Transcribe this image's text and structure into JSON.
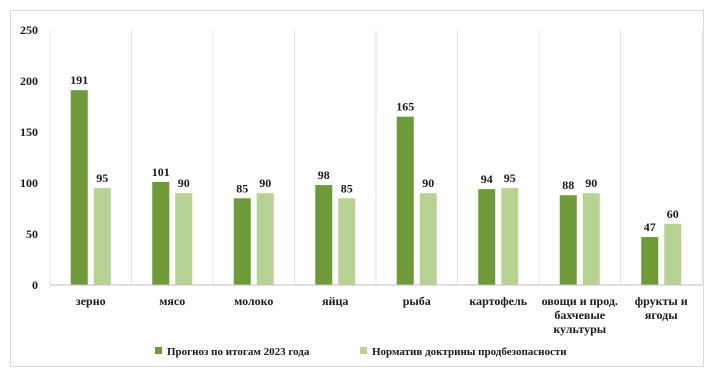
{
  "chart_data": {
    "type": "bar",
    "categories": [
      "зерно",
      "мясо",
      "молоко",
      "яйца",
      "рыба",
      "картофель",
      "овощи и прод. бахчевые культуры",
      "фрукты и ягоды"
    ],
    "category_lines": [
      [
        "зерно"
      ],
      [
        "мясо"
      ],
      [
        "молоко"
      ],
      [
        "яйца"
      ],
      [
        "рыба"
      ],
      [
        "картофель"
      ],
      [
        "овощи и прод.",
        "бахчевые",
        "культуры"
      ],
      [
        "фрукты и",
        "ягоды"
      ]
    ],
    "series": [
      {
        "name": "Прогноз по итогам 2023 года",
        "color": "#6e9a3a",
        "values": [
          191,
          101,
          85,
          98,
          165,
          94,
          88,
          47
        ]
      },
      {
        "name": "Норматив доктрины продбезопасности",
        "color": "#b7d394",
        "values": [
          95,
          90,
          90,
          85,
          90,
          95,
          90,
          60
        ]
      }
    ],
    "ylim": [
      0,
      250
    ],
    "yticks": [
      0,
      50,
      100,
      150,
      200,
      250
    ],
    "grid": "vertical category separators",
    "legend": "bottom",
    "data_labels": true
  }
}
